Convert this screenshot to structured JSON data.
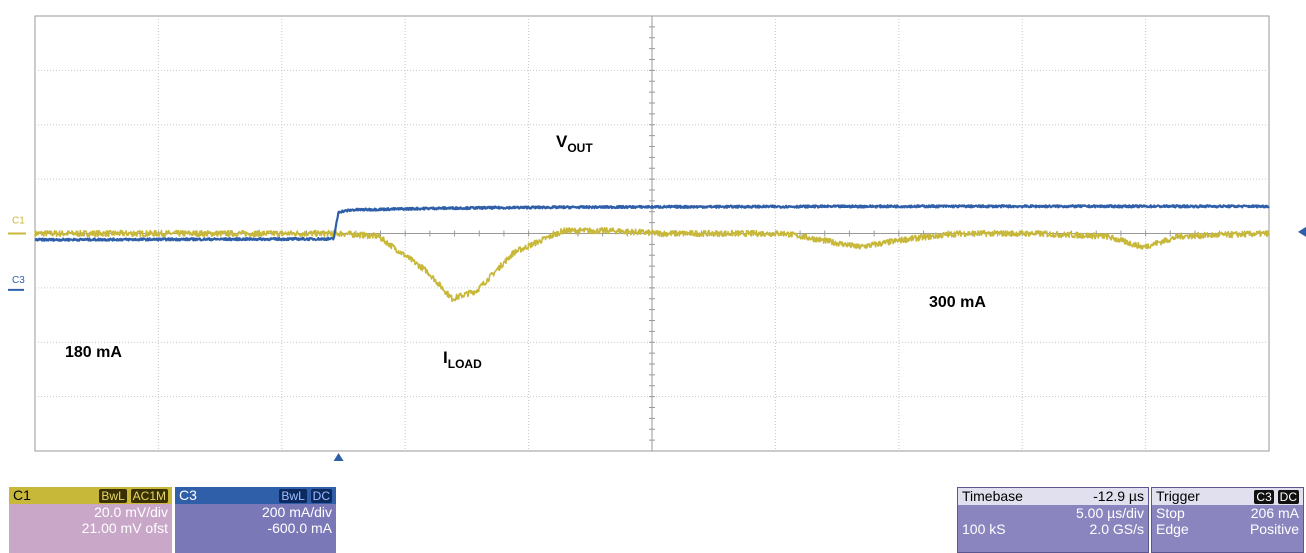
{
  "chart_data": {
    "type": "line",
    "title": "",
    "xlabel": "",
    "ylabel": "",
    "xlim": [
      -25.4,
      24.6
    ],
    "divisions": {
      "x": 10,
      "y": 8
    },
    "grid": true,
    "series": [
      {
        "name": "VOUT",
        "channel": "C1",
        "color": "#c8b83a",
        "unit": "mV",
        "ylim": [
          -101,
          59
        ],
        "x": [
          -25.4,
          -13.0,
          -11.5,
          -9.5,
          -8.5,
          -7.5,
          -6.0,
          -4.0,
          -2.0,
          0.0,
          5.0,
          8.0,
          10.0,
          12.0,
          15.0,
          18.0,
          19.5,
          21.0,
          24.6
        ],
        "values": [
          -21,
          -21,
          -22,
          -35,
          -45,
          -42,
          -28,
          -20,
          -20,
          -21,
          -21,
          -26,
          -23,
          -21,
          -21,
          -22,
          -26,
          -22,
          -21
        ]
      },
      {
        "name": "ILOAD",
        "channel": "C3",
        "color": "#2f5fa8",
        "unit": "mA",
        "ylim": [
          -600,
          1000
        ],
        "x": [
          -25.4,
          -13.3,
          -13.1,
          -12.5,
          -9.0,
          -5.0,
          0.0,
          10.0,
          24.6
        ],
        "values": [
          177,
          180,
          280,
          287,
          293,
          296,
          298,
          300,
          300
        ]
      }
    ],
    "annotations": [
      {
        "text": "V",
        "sub": "OUT"
      },
      {
        "text": "I",
        "sub": "LOAD"
      },
      {
        "text": "180 mA"
      },
      {
        "text": "300 mA"
      }
    ],
    "markers": {
      "c1": "C1",
      "c3": "C3"
    }
  },
  "panels": {
    "c1": {
      "label": "C1",
      "badge1": "BwL",
      "badge2": "AC1M",
      "scale": "20.0 mV/div",
      "offset": "21.00 mV ofst"
    },
    "c3": {
      "label": "C3",
      "badge1": "BwL",
      "badge2": "DC",
      "scale": "200 mA/div",
      "offset": "-600.0 mA"
    },
    "timebase": {
      "label": "Timebase",
      "delay": "-12.9 µs",
      "scale": "5.00 µs/div",
      "samples": "100 kS",
      "rate": "2.0 GS/s"
    },
    "trigger": {
      "label": "Trigger",
      "src": "C3",
      "coupling": "DC",
      "mode": "Stop",
      "level": "206 mA",
      "type": "Edge",
      "slope": "Positive"
    }
  },
  "colors": {
    "c1_panel": "#c9a7c9",
    "c3_panel": "#7b78b8",
    "info_panel": "#8a85bf",
    "yellow": "#c8b83a",
    "blue": "#2f5fa8"
  }
}
